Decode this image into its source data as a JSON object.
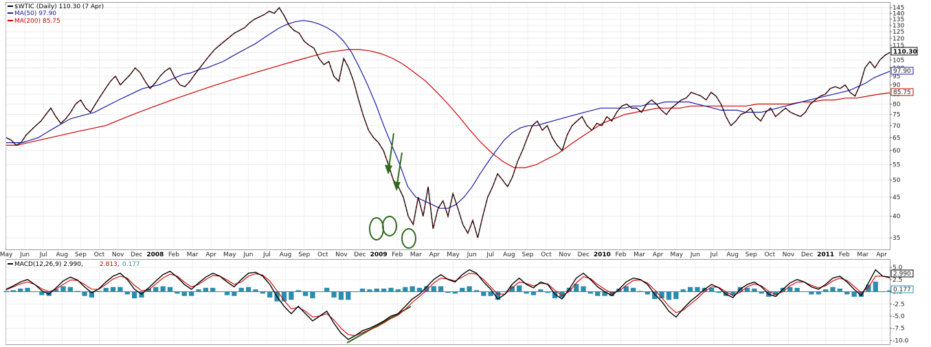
{
  "chart_data": [
    {
      "type": "line",
      "legend": {
        "symbol": "$WTIC (Daily) 110.30 (7 Apr)",
        "ma50": "MA(50) 97.90",
        "ma200": "MA(200) 85.75"
      },
      "y_ticks": [
        "145",
        "140",
        "135",
        "130",
        "125",
        "120",
        "115",
        "110",
        "105",
        "100",
        "95",
        "90",
        "85",
        "80",
        "75",
        "70",
        "65",
        "60",
        "55",
        "50",
        "45",
        "40",
        "35"
      ],
      "ylim": [
        33,
        147
      ],
      "y_scale": "log",
      "x_labels": [
        "May",
        "Jun",
        "Jul",
        "Aug",
        "Sep",
        "Oct",
        "Nov",
        "Dec",
        "2008",
        "Feb",
        "Mar",
        "Apr",
        "May",
        "Jun",
        "Jul",
        "Aug",
        "Sep",
        "Oct",
        "Nov",
        "Dec",
        "2009",
        "Feb",
        "Mar",
        "Apr",
        "May",
        "Jun",
        "Jul",
        "Aug",
        "Sep",
        "Oct",
        "Nov",
        "Dec",
        "2010",
        "Feb",
        "Mar",
        "Apr",
        "May",
        "Jun",
        "Jul",
        "Aug",
        "Sep",
        "Oct",
        "Nov",
        "Dec",
        "2011",
        "Feb",
        "Mar",
        "Apr"
      ],
      "bold_labels": [
        "2008",
        "2009",
        "2010",
        "2011"
      ],
      "price_label": "110.30",
      "ma50_label": "97.90",
      "ma200_label": "85.75",
      "colors": {
        "price": "#000000",
        "price_overlay": "#cc0000",
        "ma50": "#1a1aa6",
        "ma200": "#cc0000",
        "annotation": "#2e6b1a"
      },
      "series": [
        {
          "name": "$WTIC",
          "values": [
            65,
            64,
            62,
            63,
            66,
            68,
            70,
            72,
            75,
            78,
            74,
            71,
            73,
            76,
            80,
            82,
            78,
            76,
            80,
            84,
            88,
            92,
            95,
            90,
            93,
            96,
            100,
            97,
            92,
            88,
            91,
            95,
            98,
            100,
            94,
            90,
            89,
            92,
            96,
            100,
            104,
            108,
            112,
            115,
            118,
            121,
            124,
            126,
            128,
            132,
            135,
            137,
            139,
            142,
            140,
            145,
            138,
            130,
            126,
            124,
            118,
            115,
            113,
            106,
            102,
            104,
            95,
            92,
            106,
            100,
            92,
            82,
            74,
            68,
            65,
            63,
            60,
            55,
            50,
            48,
            45,
            40,
            38,
            45,
            40,
            48,
            37,
            42,
            44,
            40,
            46,
            42,
            38,
            36,
            39,
            35,
            40,
            45,
            48,
            52,
            50,
            48,
            51,
            56,
            60,
            65,
            70,
            72,
            68,
            70,
            65,
            62,
            60,
            66,
            70,
            72,
            74,
            70,
            68,
            71,
            70,
            74,
            72,
            76,
            79,
            80,
            78,
            78,
            76,
            80,
            82,
            80,
            77,
            75,
            78,
            80,
            82,
            83,
            86,
            85,
            84,
            82,
            86,
            84,
            80,
            74,
            70,
            72,
            75,
            76,
            78,
            74,
            72,
            76,
            78,
            74,
            76,
            78,
            76,
            75,
            74,
            76,
            80,
            82,
            84,
            85,
            88,
            89,
            88,
            90,
            86,
            84,
            90,
            100,
            104,
            100,
            105,
            108,
            110
          ]
        },
        {
          "name": "MA(50)",
          "values": [
            63,
            63,
            63,
            64,
            65,
            67,
            69,
            71,
            73,
            74,
            75,
            76,
            78,
            80,
            82,
            84,
            86,
            88,
            89,
            90,
            92,
            94,
            96,
            97,
            99,
            100,
            102,
            104,
            107,
            110,
            113,
            116,
            120,
            124,
            128,
            131,
            133,
            134,
            133,
            131,
            128,
            124,
            118,
            110,
            100,
            90,
            80,
            70,
            62,
            55,
            48,
            45,
            44,
            43,
            42,
            42,
            43,
            45,
            48,
            52,
            56,
            60,
            64,
            67,
            69,
            70,
            70,
            71,
            72,
            73,
            74,
            75,
            76,
            77,
            78,
            78,
            78,
            78,
            79,
            79,
            80,
            80,
            81,
            81,
            81,
            81,
            80,
            79,
            78,
            77,
            77,
            77,
            76,
            76,
            76,
            77,
            78,
            79,
            80,
            81,
            82,
            83,
            84,
            85,
            86,
            87,
            89,
            91,
            94,
            96,
            97.9
          ]
        },
        {
          "name": "MA(200)",
          "values": [
            62,
            62,
            63,
            64,
            65,
            66,
            67,
            68,
            69,
            70,
            72,
            74,
            76,
            78,
            80,
            82,
            84,
            86,
            88,
            90,
            92,
            94,
            96,
            98,
            100,
            102,
            104,
            106,
            108,
            110,
            111,
            112,
            112,
            111,
            109,
            106,
            102,
            97,
            92,
            86,
            80,
            74,
            68,
            63,
            59,
            56,
            54,
            54,
            55,
            57,
            59,
            62,
            65,
            68,
            71,
            73,
            75,
            76,
            77,
            78,
            78,
            78,
            79,
            79,
            79,
            79,
            79,
            79,
            80,
            80,
            80,
            80,
            81,
            81,
            82,
            82,
            83,
            83,
            84,
            85,
            85.75
          ]
        }
      ]
    },
    {
      "type": "line",
      "legend": {
        "label": "MACD(12,26,9) 2.990,",
        "signal": "2.813,",
        "hist": "0.177"
      },
      "y_ticks": [
        "5.0",
        "2.5",
        "0.0",
        "-2.5",
        "-5.0",
        "-7.5",
        "-10.0"
      ],
      "ylim": [
        -10.5,
        6
      ],
      "macd_label": "2.990",
      "hist_label": "0.177",
      "colors": {
        "macd": "#000000",
        "signal": "#cc0000",
        "hist": "#2b8cae"
      },
      "series": [
        {
          "name": "MACD",
          "values": [
            0.5,
            1.2,
            2.0,
            2.5,
            1.5,
            0.2,
            -0.5,
            0.8,
            2.2,
            3.0,
            2.4,
            1.0,
            -0.2,
            0.6,
            2.0,
            3.2,
            3.8,
            2.5,
            0.5,
            -0.5,
            0.8,
            2.2,
            3.5,
            4.2,
            3.0,
            1.5,
            0.5,
            1.8,
            3.0,
            3.8,
            3.2,
            2.0,
            1.0,
            2.5,
            3.8,
            4.0,
            3.2,
            1.5,
            -1.0,
            -3.0,
            -4.5,
            -3.0,
            -4.5,
            -6.0,
            -5.0,
            -4.0,
            -6.5,
            -8.5,
            -9.8,
            -9.0,
            -8.0,
            -7.5,
            -6.8,
            -6.0,
            -5.0,
            -4.5,
            -3.0,
            -1.5,
            -0.5,
            1.0,
            2.5,
            3.5,
            2.5,
            2.0,
            3.5,
            4.5,
            3.8,
            2.0,
            0.5,
            -1.5,
            -0.5,
            1.5,
            2.8,
            1.5,
            0.8,
            2.0,
            1.5,
            -0.5,
            -1.5,
            0.5,
            2.8,
            3.8,
            2.5,
            1.0,
            0.0,
            -0.8,
            0.5,
            2.0,
            2.8,
            2.5,
            1.5,
            -0.5,
            -2.0,
            -4.0,
            -5.2,
            -3.5,
            -2.0,
            -0.8,
            0.5,
            1.5,
            0.8,
            -0.5,
            -1.2,
            0.5,
            1.5,
            2.0,
            1.0,
            -0.5,
            -1.0,
            0.5,
            1.8,
            2.5,
            2.0,
            1.0,
            0.5,
            1.5,
            2.8,
            3.2,
            2.0,
            0.5,
            -0.8,
            1.8,
            4.5,
            3.2,
            2.99
          ]
        },
        {
          "name": "Signal",
          "values": [
            0.4,
            1.0,
            1.6,
            2.0,
            1.5,
            0.6,
            0.0,
            0.5,
            1.5,
            2.4,
            2.3,
            1.5,
            0.5,
            0.5,
            1.5,
            2.6,
            3.2,
            2.8,
            1.3,
            0.2,
            0.4,
            1.6,
            2.8,
            3.6,
            3.2,
            2.0,
            1.0,
            1.5,
            2.5,
            3.3,
            3.2,
            2.4,
            1.5,
            2.0,
            3.2,
            3.7,
            3.4,
            2.2,
            0.2,
            -1.8,
            -3.5,
            -3.2,
            -4.0,
            -5.2,
            -5.0,
            -4.5,
            -5.8,
            -7.5,
            -8.8,
            -9.0,
            -8.4,
            -7.8,
            -7.2,
            -6.4,
            -5.5,
            -4.8,
            -3.6,
            -2.2,
            -1.0,
            0.3,
            1.8,
            2.8,
            2.6,
            2.2,
            3.0,
            3.8,
            3.6,
            2.5,
            1.0,
            -0.5,
            -0.5,
            0.8,
            2.0,
            1.7,
            1.2,
            1.7,
            1.6,
            0.3,
            -0.8,
            0.0,
            1.8,
            3.1,
            2.7,
            1.5,
            0.5,
            -0.3,
            0.1,
            1.3,
            2.3,
            2.4,
            1.8,
            0.4,
            -1.2,
            -3.0,
            -4.3,
            -3.8,
            -2.6,
            -1.4,
            0.0,
            1.0,
            0.9,
            0.0,
            -0.8,
            -0.1,
            1.0,
            1.6,
            1.2,
            0.1,
            -0.6,
            0.0,
            1.2,
            2.0,
            2.0,
            1.3,
            0.8,
            1.2,
            2.2,
            2.8,
            2.3,
            1.1,
            -0.2,
            0.9,
            3.2,
            3.2,
            2.813
          ]
        }
      ]
    }
  ],
  "annotations": {
    "circles": 3,
    "arrows": 2,
    "trendline": true
  }
}
